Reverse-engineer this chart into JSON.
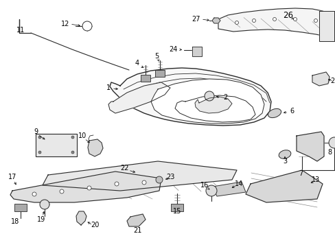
{
  "background_color": "#ffffff",
  "line_color": "#2a2a2a",
  "label_color": "#000000",
  "figsize": [
    4.89,
    3.6
  ],
  "dpi": 100,
  "label_fontsize": 7.0,
  "label_fontsize_large": 8.5
}
